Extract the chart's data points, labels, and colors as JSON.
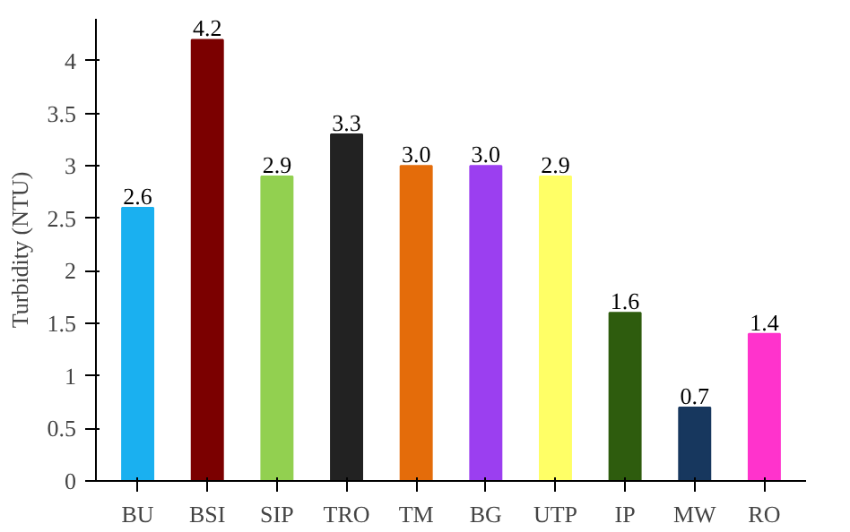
{
  "chart_data": {
    "type": "bar",
    "ylabel": "Turbidity (NTU)",
    "categories": [
      "BU",
      "BSI",
      "SIP",
      "TRO",
      "TM",
      "BG",
      "UTP",
      "IP",
      "MW",
      "RO"
    ],
    "values": [
      2.6,
      4.2,
      2.9,
      3.3,
      3.0,
      3.0,
      2.9,
      1.6,
      0.7,
      1.4
    ],
    "value_labels": [
      "2.6",
      "4.2",
      "2.9",
      "3.3",
      "3.0",
      "3.0",
      "2.9",
      "1.6",
      "0.7",
      "1.4"
    ],
    "colors": [
      "#1ab0f0",
      "#7b0000",
      "#92d050",
      "#222222",
      "#e46c0a",
      "#9b3ff0",
      "#ffff66",
      "#2e5c0e",
      "#17375e",
      "#ff33cc"
    ],
    "ylim": [
      0,
      4.4
    ],
    "yticks": [
      0,
      0.5,
      1,
      1.5,
      2,
      2.5,
      3,
      3.5,
      4
    ],
    "grid": false
  }
}
